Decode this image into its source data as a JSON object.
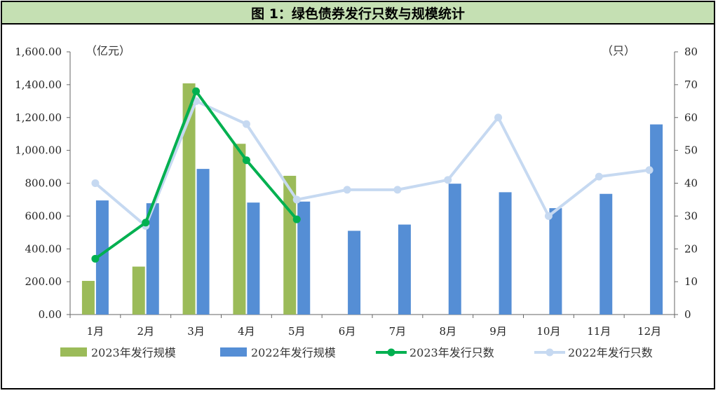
{
  "title": "图 1：绿色债券发行只数与规模统计",
  "chart_data": {
    "type": "bar",
    "categories": [
      "1月",
      "2月",
      "3月",
      "4月",
      "5月",
      "6月",
      "7月",
      "8月",
      "9月",
      "10月",
      "11月",
      "12月"
    ],
    "left_axis": {
      "unit": "（亿元）",
      "min": 0,
      "max": 1600,
      "step": 200,
      "tick_labels": [
        "0.00",
        "200.00",
        "400.00",
        "600.00",
        "800.00",
        "1,000.00",
        "1,200.00",
        "1,400.00",
        "1,600.00"
      ]
    },
    "right_axis": {
      "unit": "（只）",
      "min": 0,
      "max": 80,
      "step": 10,
      "tick_labels": [
        "0",
        "10",
        "20",
        "30",
        "40",
        "50",
        "60",
        "70",
        "80"
      ]
    },
    "series": [
      {
        "name": "2023年发行规模",
        "type": "bar",
        "axis": "left",
        "color": "#9bbb59",
        "values": [
          205,
          292,
          1408,
          1040,
          845,
          null,
          null,
          null,
          null,
          null,
          null,
          null
        ]
      },
      {
        "name": "2022年发行规模",
        "type": "bar",
        "axis": "left",
        "color": "#558ed5",
        "values": [
          695,
          678,
          887,
          682,
          688,
          510,
          548,
          797,
          745,
          648,
          735,
          1158
        ]
      },
      {
        "name": "2023年发行只数",
        "type": "line",
        "axis": "right",
        "color": "#00b050",
        "values": [
          17,
          28,
          68,
          47,
          29,
          null,
          null,
          null,
          null,
          null,
          null,
          null
        ]
      },
      {
        "name": "2022年发行只数",
        "type": "line",
        "axis": "right",
        "color": "#c6d9f1",
        "values": [
          40,
          27,
          65,
          58,
          35,
          38,
          38,
          41,
          60,
          30,
          42,
          44
        ]
      }
    ],
    "legend_position": "bottom",
    "grid": false
  }
}
